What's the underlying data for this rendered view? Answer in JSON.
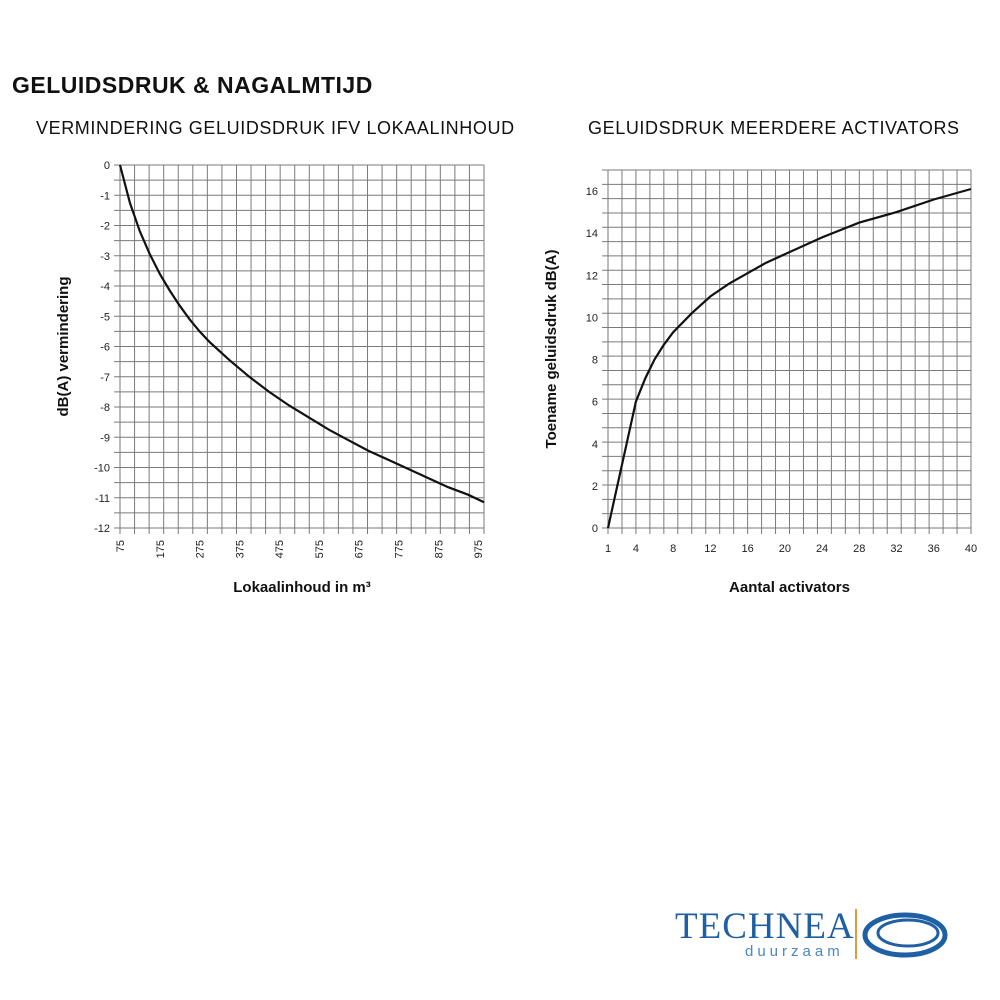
{
  "page": {
    "title": "GELUIDSDRUK & NAGALMTIJD"
  },
  "logo": {
    "brand": "TECHNEA",
    "tagline": "duurzaam",
    "color": "#1f5fa4",
    "accent": "#e59a3a"
  },
  "chart_data": [
    {
      "type": "line",
      "title": "VERMINDERING GELUIDSDRUK IFV LOKAALINHOUD",
      "xlabel": "Lokaalinhoud in m³",
      "ylabel": "dB(A) vermindering",
      "xlim": [
        75,
        990
      ],
      "ylim": [
        -12,
        0
      ],
      "grid": true,
      "x_ticks": [
        75,
        175,
        275,
        375,
        475,
        575,
        675,
        775,
        875,
        975
      ],
      "y_ticks": [
        0,
        -1,
        -2,
        -3,
        -4,
        -5,
        -6,
        -7,
        -8,
        -9,
        -10,
        -11,
        -12
      ],
      "series": [
        {
          "x": [
            75,
            100,
            125,
            150,
            175,
            200,
            225,
            250,
            275,
            300,
            350,
            400,
            450,
            500,
            550,
            600,
            650,
            700,
            750,
            800,
            850,
            900,
            950,
            990
          ],
          "y": [
            0,
            -1.25,
            -2.2,
            -2.95,
            -3.6,
            -4.15,
            -4.65,
            -5.1,
            -5.5,
            -5.85,
            -6.45,
            -7.0,
            -7.5,
            -7.95,
            -8.35,
            -8.75,
            -9.1,
            -9.45,
            -9.75,
            -10.05,
            -10.35,
            -10.65,
            -10.9,
            -11.15
          ]
        }
      ]
    },
    {
      "type": "line",
      "title": "GELUIDSDRUK MEERDERE ACTIVATORS",
      "xlabel": "Aantal activators",
      "ylabel": "Toename geluidsdruk dB(A)",
      "xlim": [
        1,
        40
      ],
      "ylim": [
        0,
        17
      ],
      "grid": true,
      "x_ticks": [
        1,
        4,
        8,
        12,
        16,
        20,
        24,
        28,
        32,
        36,
        40
      ],
      "y_ticks": [
        0,
        2,
        4,
        6,
        8,
        10,
        12,
        14,
        16
      ],
      "series": [
        {
          "x": [
            1,
            2,
            3,
            4,
            5,
            6,
            7,
            8,
            10,
            12,
            14,
            16,
            18,
            20,
            24,
            28,
            32,
            36,
            40
          ],
          "y": [
            0,
            2.0,
            4.0,
            6.0,
            7.1,
            8.0,
            8.7,
            9.3,
            10.2,
            11.0,
            11.6,
            12.1,
            12.6,
            13.0,
            13.8,
            14.5,
            15.0,
            15.6,
            16.1
          ]
        }
      ]
    }
  ]
}
